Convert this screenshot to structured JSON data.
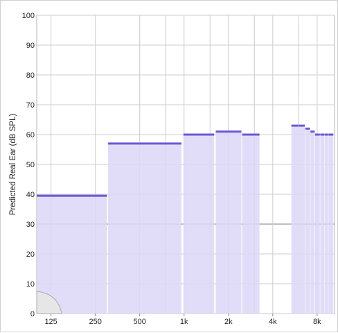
{
  "chart_data": {
    "type": "bar",
    "title": "",
    "xlabel": "",
    "ylabel": "Predicted Real Ear (dB SPL)",
    "x_scale": "log",
    "xlim_hz": [
      100,
      10500
    ],
    "ylim": [
      0,
      100
    ],
    "y_ticks": [
      0,
      10,
      20,
      30,
      40,
      50,
      60,
      70,
      80,
      90,
      100
    ],
    "x_ticks": [
      {
        "hz": 125,
        "label": "125"
      },
      {
        "hz": 250,
        "label": "250"
      },
      {
        "hz": 500,
        "label": "500"
      },
      {
        "hz": 1000,
        "label": "1k"
      },
      {
        "hz": 2000,
        "label": "2k"
      },
      {
        "hz": 4000,
        "label": "4k"
      },
      {
        "hz": 8000,
        "label": "8k"
      }
    ],
    "x_minor_gridlines_hz": [
      750,
      1500,
      3000,
      6000
    ],
    "highlight_gridline_y": 30,
    "grid": true,
    "series": [
      {
        "bands": [
          {
            "f_lo": 100,
            "f_hi": 300,
            "value": 39.5
          },
          {
            "f_lo": 305,
            "f_hi": 960,
            "value": 57
          },
          {
            "f_lo": 990,
            "f_hi": 1600,
            "value": 60
          },
          {
            "f_lo": 1640,
            "f_hi": 2450,
            "value": 61
          },
          {
            "f_lo": 2480,
            "f_hi": 3250,
            "value": 60
          },
          {
            "f_lo": 5350,
            "f_hi": 5950,
            "value": 63
          },
          {
            "f_lo": 5980,
            "f_hi": 6600,
            "value": 63
          },
          {
            "f_lo": 6650,
            "f_hi": 7150,
            "value": 62
          },
          {
            "f_lo": 7200,
            "f_hi": 7700,
            "value": 61
          },
          {
            "f_lo": 7750,
            "f_hi": 8350,
            "value": 60
          },
          {
            "f_lo": 8400,
            "f_hi": 8950,
            "value": 60
          },
          {
            "f_lo": 9000,
            "f_hi": 9500,
            "value": 60
          },
          {
            "f_lo": 9550,
            "f_hi": 10300,
            "value": 60
          }
        ]
      }
    ],
    "colors": {
      "fill": "#dcd7f7",
      "top_line": "#6e57d6",
      "grid": "#cccccc",
      "highlight_grid": "#999999",
      "threshold_fill": "#e6e6e6",
      "threshold_stroke": "#aaaaaa"
    }
  }
}
